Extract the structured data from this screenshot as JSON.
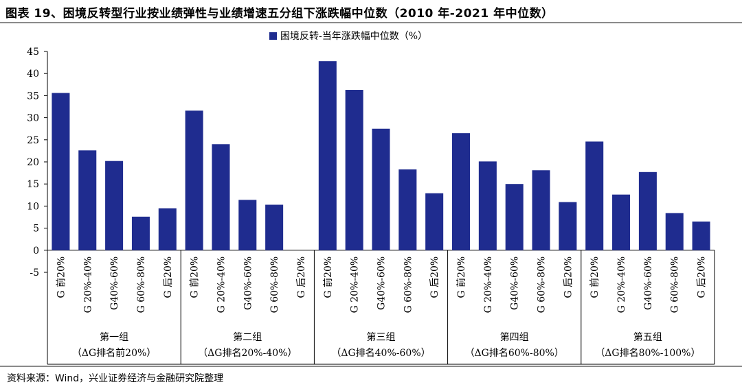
{
  "page": {
    "title": "图表 19、困境反转型行业按业绩弹性与业绩增速五分组下涨跌幅中位数（2010 年-2021 年中位数）",
    "source": "资料来源：Wind，兴业证券经济与金融研究院整理"
  },
  "colors": {
    "bar": "#1f2c8f",
    "axis": "#000000"
  },
  "chart_data": {
    "type": "bar",
    "title": "",
    "xlabel": "",
    "ylabel": "",
    "ylim": [
      -5,
      45
    ],
    "yticks": [
      -5,
      0,
      5,
      10,
      15,
      20,
      25,
      30,
      35,
      40,
      45
    ],
    "grid": false,
    "legend_position": "top-right",
    "series": [
      {
        "name": "困境反转-当年涨跌幅中位数（%）",
        "values": [
          35.6,
          22.6,
          20.2,
          7.6,
          9.5,
          31.6,
          24.0,
          11.4,
          10.3,
          null,
          42.8,
          36.3,
          27.5,
          18.3,
          12.9,
          26.5,
          20.1,
          15.0,
          18.1,
          10.9,
          24.6,
          12.6,
          17.7,
          8.4,
          6.5
        ]
      }
    ],
    "categories": [
      "G 前20%",
      "G 20%-40%",
      "G40%-60%",
      "G 60%-80%",
      "G 后20%",
      "G 前20%",
      "G 20%-40%",
      "G40%-60%",
      "G 60%-80%",
      "G 后20%",
      "G 前20%",
      "G 20%-40%",
      "G40%-60%",
      "G 60%-80%",
      "G 后20%",
      "G 前20%",
      "G 20%-40%",
      "G40%-60%",
      "G 60%-80%",
      "G 后20%",
      "G 前20%",
      "G 20%-40%",
      "G40%-60%",
      "G 60%-80%",
      "G 后20%"
    ],
    "groups": [
      {
        "name": "第一组",
        "sub": "（ΔG排名前20%）"
      },
      {
        "name": "第二组",
        "sub": "（ΔG排名20%-40%）"
      },
      {
        "name": "第三组",
        "sub": "（ΔG排名40%-60%）"
      },
      {
        "name": "第四组",
        "sub": "（ΔG排名60%-80%）"
      },
      {
        "name": "第五组",
        "sub": "（ΔG排名80%-100%）"
      }
    ]
  }
}
